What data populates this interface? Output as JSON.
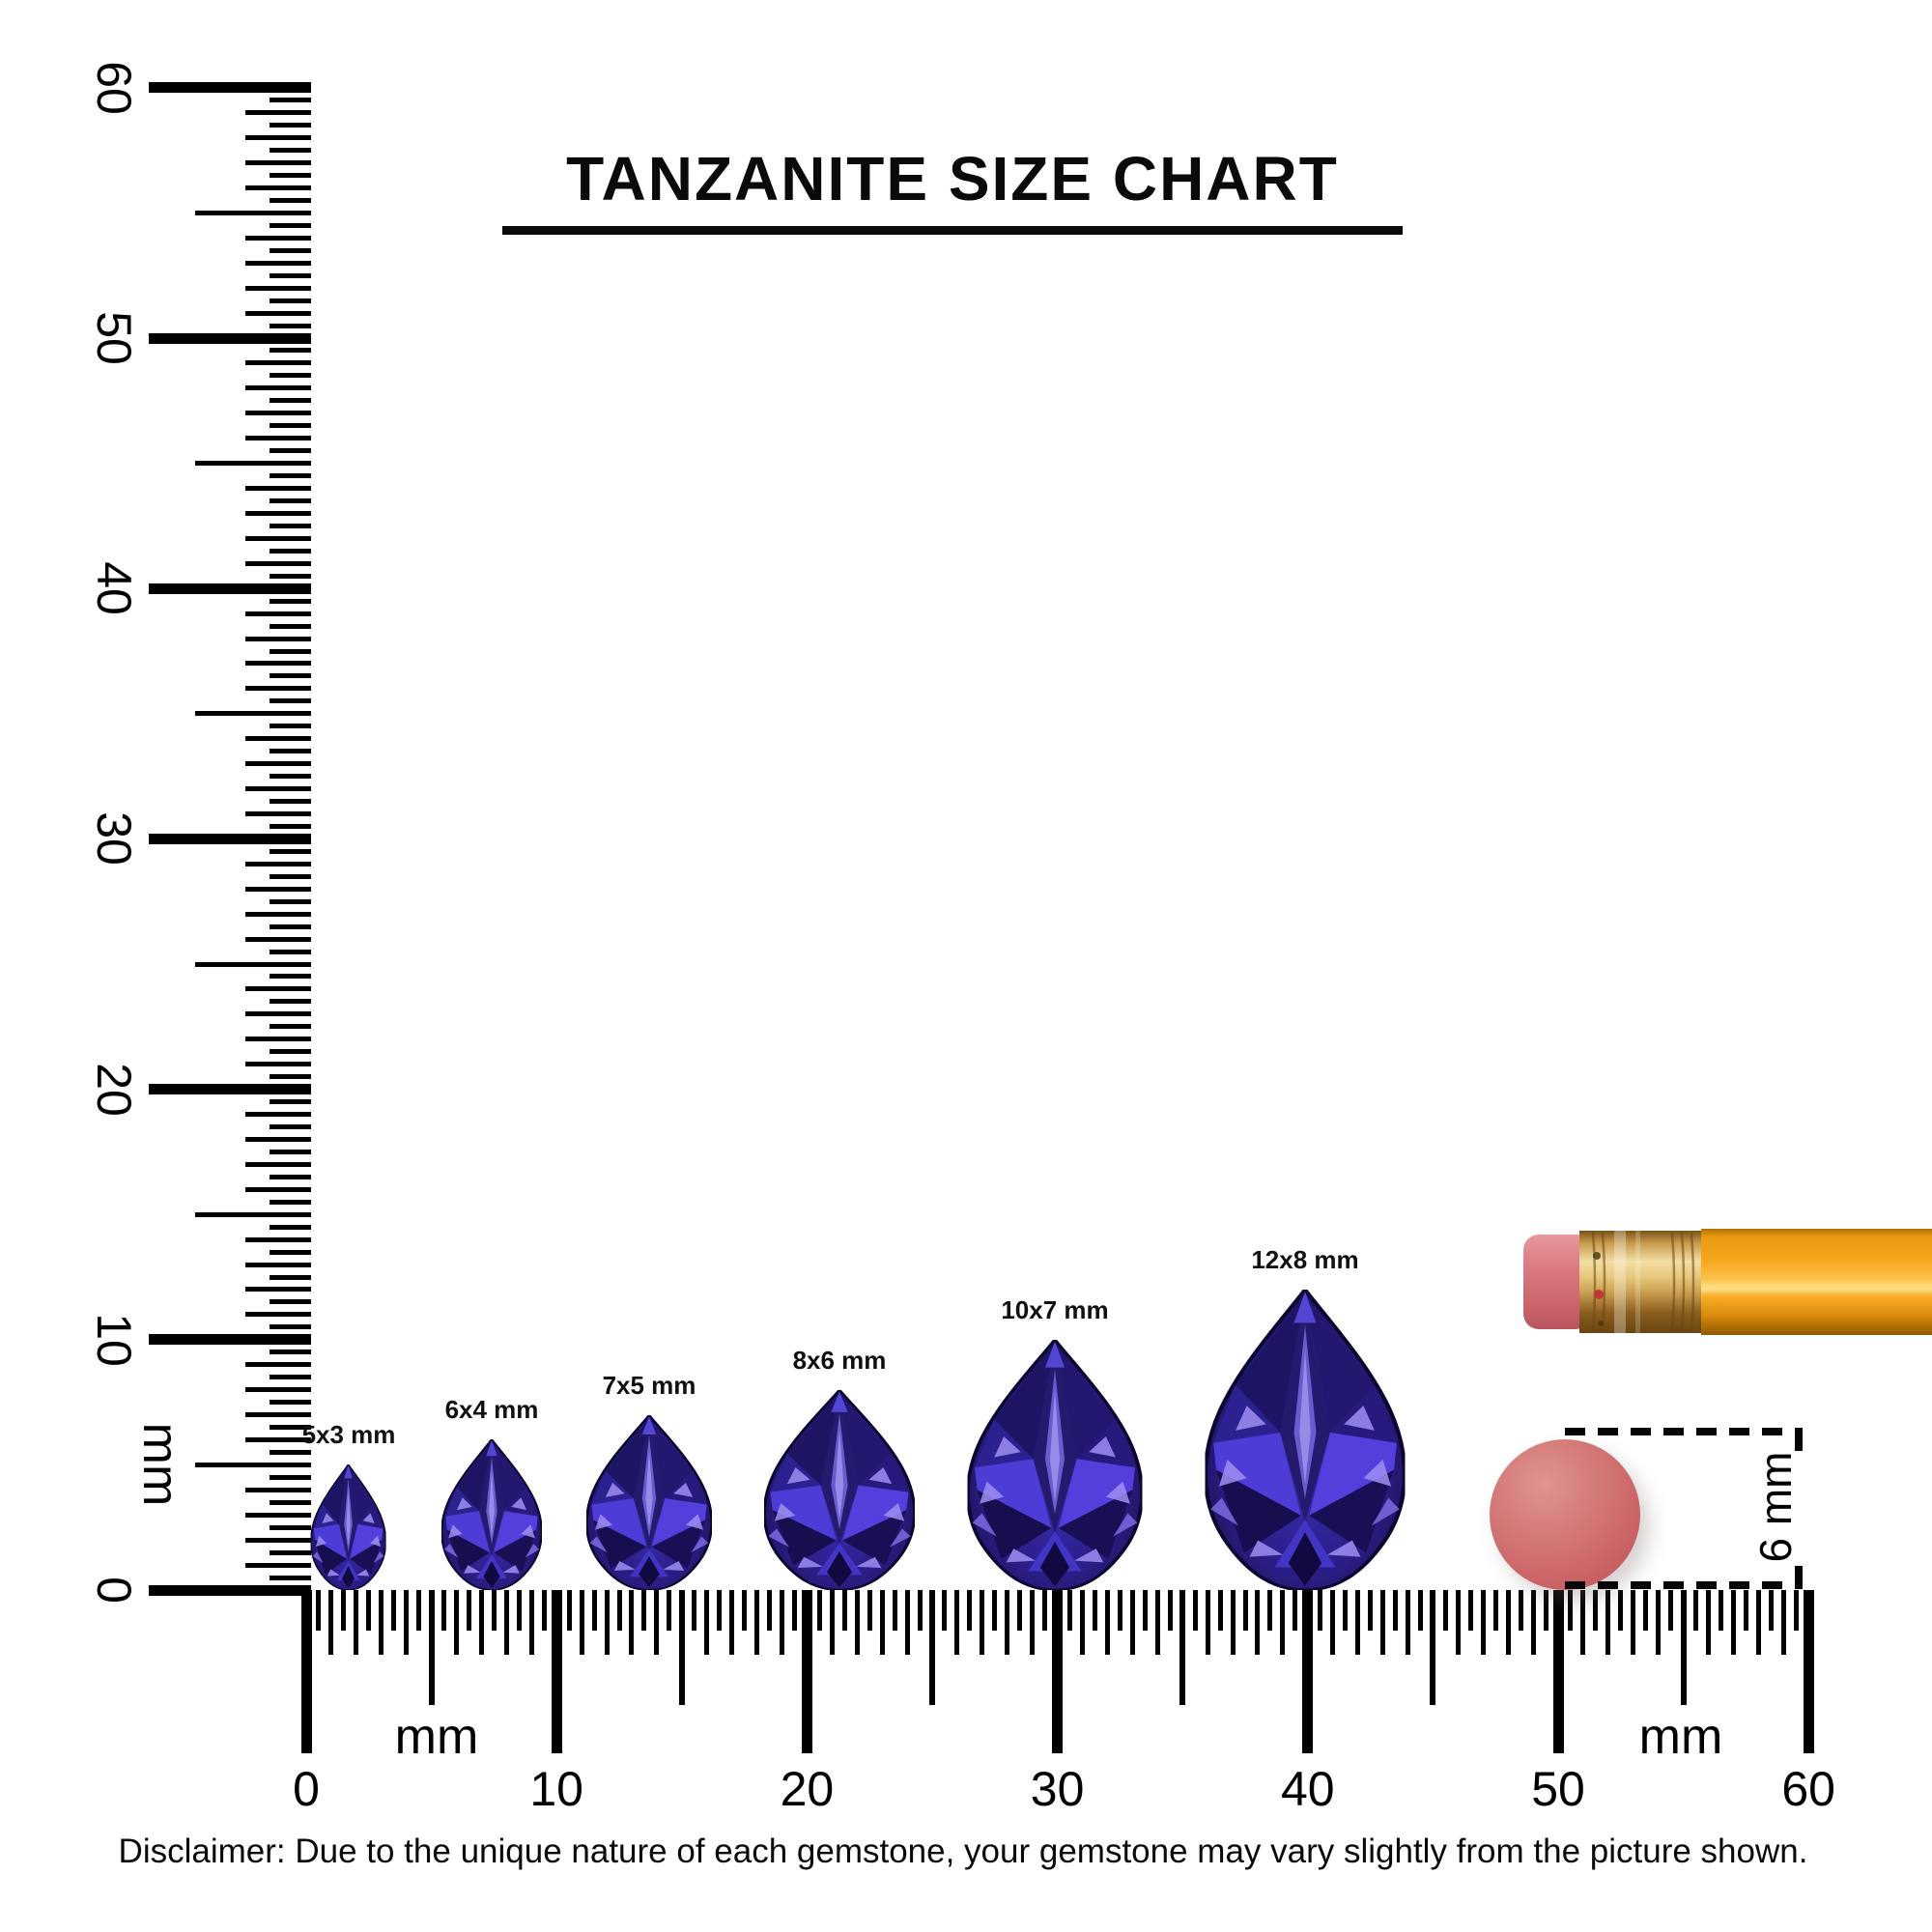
{
  "title": {
    "text": "TANZANITE SIZE CHART"
  },
  "disclaimer": "Disclaimer: Due to the unique nature of each gemstone, your gemstone may vary slightly from the picture shown.",
  "chart_data": {
    "type": "size-chart",
    "subject": "Tanzanite pear-cut gemstones",
    "unit": "mm",
    "gem_sizes_mm": [
      [
        5,
        3
      ],
      [
        6,
        4
      ],
      [
        7,
        5
      ],
      [
        8,
        6
      ],
      [
        10,
        7
      ],
      [
        12,
        8
      ]
    ],
    "ruler_range_mm": [
      0,
      60
    ],
    "reference_object": "pencil with eraser, eraser diameter 6 mm"
  },
  "gems": [
    {
      "label": "5x3 mm",
      "length_mm": 5,
      "width_mm": 3,
      "center_mm": 1.7
    },
    {
      "label": "6x4 mm",
      "length_mm": 6,
      "width_mm": 4,
      "center_mm": 7.4
    },
    {
      "label": "7x5 mm",
      "length_mm": 7,
      "width_mm": 5,
      "center_mm": 13.7
    },
    {
      "label": "8x6 mm",
      "length_mm": 8,
      "width_mm": 6,
      "center_mm": 21.3
    },
    {
      "label": "10x7 mm",
      "length_mm": 10,
      "width_mm": 7,
      "center_mm": 29.9
    },
    {
      "label": "12x8 mm",
      "length_mm": 12,
      "width_mm": 8,
      "center_mm": 39.9
    }
  ],
  "rulers": {
    "vertical": {
      "min_mm": 0,
      "max_mm": 60,
      "label_step_mm": 10,
      "labels": [
        "0",
        "10",
        "20",
        "30",
        "40",
        "50",
        "60"
      ],
      "unit_label": "mm"
    },
    "horizontal": {
      "min_mm": 0,
      "max_mm": 60,
      "label_step_mm": 10,
      "labels": [
        "0",
        "10",
        "20",
        "30",
        "40",
        "50",
        "60"
      ],
      "unit_labels": [
        "mm",
        "mm"
      ]
    }
  },
  "eraser_measure": {
    "label": "6 mm",
    "diameter_mm": 6
  },
  "colors": {
    "ink": "#000000",
    "gem_dark": "#160d3f",
    "gem_mid": "#2a1e85",
    "gem_bright": "#4d3cd6",
    "gem_light": "#9e8ff2",
    "eraser_pink": "#cc6668",
    "pencil_body_orange": "#f7a71c",
    "ferrule_gold": "#caa052"
  }
}
